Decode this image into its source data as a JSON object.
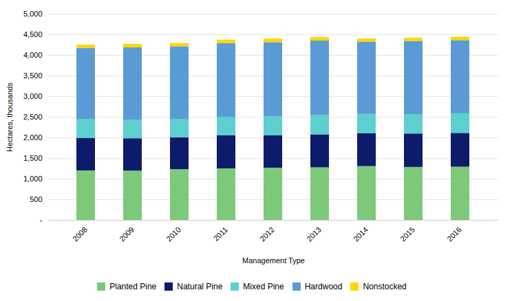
{
  "chart_data": {
    "type": "bar",
    "stacked": true,
    "xlabel": "Management Type",
    "ylabel": "Hectares, thousands",
    "categories": [
      "2008",
      "2009",
      "2010",
      "2011",
      "2012",
      "2013",
      "2014",
      "2015",
      "2016"
    ],
    "series": [
      {
        "name": "Planted Pine",
        "color": "#7DC97A",
        "values": [
          1200,
          1195,
          1230,
          1250,
          1265,
          1275,
          1305,
          1285,
          1290
        ]
      },
      {
        "name": "Natural Pine",
        "color": "#0D1B6B",
        "values": [
          790,
          785,
          775,
          800,
          785,
          800,
          795,
          810,
          820
        ]
      },
      {
        "name": "Mixed Pine",
        "color": "#5ECFCF",
        "values": [
          460,
          445,
          445,
          450,
          460,
          465,
          470,
          470,
          475
        ]
      },
      {
        "name": "Hardwood",
        "color": "#5B9BD5",
        "values": [
          1720,
          1760,
          1760,
          1785,
          1800,
          1810,
          1755,
          1775,
          1775
        ]
      },
      {
        "name": "Nonstocked",
        "color": "#FFD700",
        "values": [
          80,
          85,
          80,
          85,
          85,
          85,
          75,
          80,
          80
        ]
      }
    ],
    "ylim": [
      0,
      5000
    ],
    "yticks": [
      {
        "value": 0,
        "label": "-"
      },
      500,
      {
        "value": 1000,
        "label": "1,000"
      },
      {
        "value": 1500,
        "label": "1,500"
      },
      {
        "value": 2000,
        "label": "2,000"
      },
      {
        "value": 2500,
        "label": "2,500"
      },
      {
        "value": 3000,
        "label": "3,000"
      },
      {
        "value": 3500,
        "label": "3,500"
      },
      {
        "value": 4000,
        "label": "4,000"
      },
      {
        "value": 4500,
        "label": "4,500"
      },
      {
        "value": 5000,
        "label": "5,000"
      }
    ],
    "grid": true,
    "legend": "bottom"
  }
}
